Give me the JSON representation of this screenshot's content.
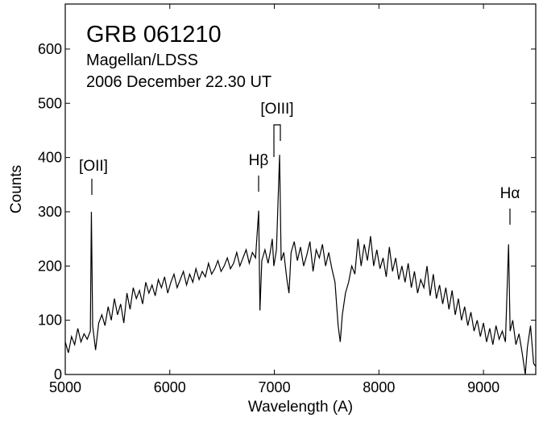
{
  "chart_data": {
    "type": "line",
    "annotations": [
      "GRB 061210",
      "Magellan/LDSS",
      "2006 December 22.30 UT",
      "[OII]",
      "Hβ",
      "[OIII]",
      "Hα"
    ],
    "x_label": "Wavelength  (A)",
    "y_label": "Counts",
    "xlim": [
      5000,
      9500
    ],
    "ylim": [
      0,
      683
    ],
    "xticks": [
      5000,
      6000,
      7000,
      8000,
      9000
    ],
    "yticks": [
      0,
      100,
      200,
      300,
      400,
      500,
      600
    ],
    "color": "#000000",
    "x": [
      5000,
      5030,
      5060,
      5090,
      5120,
      5150,
      5180,
      5210,
      5240,
      5250,
      5262,
      5290,
      5320,
      5350,
      5380,
      5410,
      5440,
      5470,
      5500,
      5530,
      5560,
      5590,
      5620,
      5650,
      5680,
      5710,
      5740,
      5770,
      5800,
      5830,
      5860,
      5890,
      5920,
      5950,
      5980,
      6010,
      6040,
      6070,
      6100,
      6130,
      6160,
      6190,
      6220,
      6250,
      6280,
      6310,
      6340,
      6370,
      6400,
      6430,
      6460,
      6490,
      6520,
      6550,
      6580,
      6610,
      6640,
      6670,
      6700,
      6730,
      6760,
      6790,
      6820,
      6850,
      6862,
      6880,
      6910,
      6940,
      6960,
      6980,
      6995,
      7020,
      7050,
      7065,
      7090,
      7120,
      7140,
      7160,
      7190,
      7220,
      7250,
      7280,
      7310,
      7340,
      7370,
      7400,
      7430,
      7460,
      7490,
      7520,
      7550,
      7580,
      7610,
      7630,
      7650,
      7680,
      7710,
      7740,
      7770,
      7800,
      7830,
      7860,
      7890,
      7920,
      7950,
      7980,
      8010,
      8040,
      8070,
      8100,
      8130,
      8160,
      8190,
      8220,
      8250,
      8280,
      8310,
      8340,
      8370,
      8400,
      8430,
      8460,
      8490,
      8520,
      8550,
      8580,
      8610,
      8640,
      8670,
      8700,
      8730,
      8760,
      8790,
      8820,
      8850,
      8880,
      8910,
      8940,
      8970,
      9000,
      9030,
      9060,
      9090,
      9120,
      9150,
      9180,
      9210,
      9240,
      9255,
      9280,
      9310,
      9340,
      9370,
      9400,
      9420,
      9450,
      9480,
      9500
    ],
    "values": [
      60,
      40,
      70,
      55,
      85,
      60,
      75,
      65,
      80,
      300,
      90,
      45,
      95,
      110,
      90,
      125,
      100,
      140,
      110,
      130,
      95,
      150,
      120,
      160,
      140,
      155,
      130,
      170,
      150,
      165,
      145,
      175,
      160,
      180,
      150,
      170,
      185,
      160,
      175,
      190,
      165,
      185,
      170,
      195,
      175,
      190,
      180,
      205,
      185,
      195,
      210,
      190,
      200,
      215,
      195,
      205,
      225,
      200,
      215,
      230,
      205,
      225,
      215,
      302,
      118,
      210,
      230,
      205,
      225,
      250,
      200,
      230,
      405,
      210,
      225,
      175,
      150,
      225,
      245,
      210,
      235,
      200,
      220,
      245,
      190,
      230,
      215,
      240,
      200,
      225,
      195,
      170,
      90,
      60,
      110,
      150,
      170,
      200,
      185,
      250,
      200,
      240,
      210,
      255,
      200,
      230,
      195,
      215,
      180,
      235,
      190,
      215,
      175,
      200,
      170,
      205,
      160,
      190,
      150,
      175,
      160,
      200,
      145,
      185,
      140,
      165,
      130,
      160,
      120,
      155,
      110,
      140,
      100,
      125,
      90,
      115,
      80,
      100,
      70,
      95,
      60,
      85,
      55,
      90,
      65,
      80,
      60,
      240,
      80,
      100,
      55,
      75,
      40,
      0,
      50,
      90,
      20,
      15
    ]
  }
}
